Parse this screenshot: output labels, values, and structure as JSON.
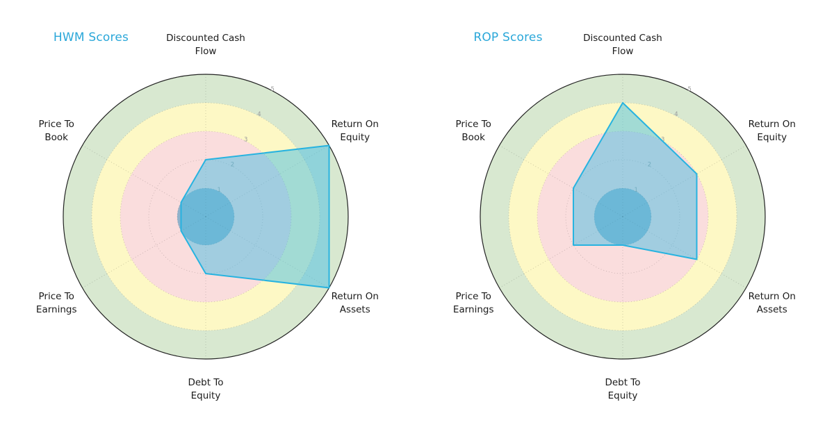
{
  "colors": {
    "title": "#2aa7d9",
    "label": "#1a1a1a",
    "tick": "#999999",
    "outline": "#222222",
    "grid": "rgba(0,0,0,0.22)",
    "polygon_fill": "rgba(72,190,228,0.5)",
    "polygon_stroke": "#27b3e0"
  },
  "chart_data": [
    {
      "type": "radar",
      "title": "HWM Scores",
      "categories": [
        [
          "Discounted Cash",
          "Flow"
        ],
        [
          "Return On",
          "Equity"
        ],
        [
          "Return On",
          "Assets"
        ],
        [
          "Debt To",
          "Equity"
        ],
        [
          "Price To",
          "Earnings"
        ],
        [
          "Price To",
          "Book"
        ]
      ],
      "values": [
        2,
        5,
        5,
        2,
        1,
        1
      ],
      "rlim": [
        0,
        5
      ],
      "rticks": [
        1,
        2,
        3,
        4,
        5
      ],
      "bands": [
        {
          "from": 0,
          "to": 1,
          "color": "#90b2cb"
        },
        {
          "from": 1,
          "to": 3,
          "color": "#fadddd"
        },
        {
          "from": 3,
          "to": 4,
          "color": "#fdf8c5"
        },
        {
          "from": 4,
          "to": 5,
          "color": "#d8e8d0"
        }
      ]
    },
    {
      "type": "radar",
      "title": "ROP Scores",
      "categories": [
        [
          "Discounted Cash",
          "Flow"
        ],
        [
          "Return On",
          "Equity"
        ],
        [
          "Return On",
          "Assets"
        ],
        [
          "Debt To",
          "Equity"
        ],
        [
          "Price To",
          "Earnings"
        ],
        [
          "Price To",
          "Book"
        ]
      ],
      "values": [
        4,
        3,
        3,
        1,
        2,
        2
      ],
      "rlim": [
        0,
        5
      ],
      "rticks": [
        1,
        2,
        3,
        4,
        5
      ],
      "bands": [
        {
          "from": 0,
          "to": 1,
          "color": "#90b2cb"
        },
        {
          "from": 1,
          "to": 3,
          "color": "#fadddd"
        },
        {
          "from": 3,
          "to": 4,
          "color": "#fdf8c5"
        },
        {
          "from": 4,
          "to": 5,
          "color": "#d8e8d0"
        }
      ]
    }
  ]
}
